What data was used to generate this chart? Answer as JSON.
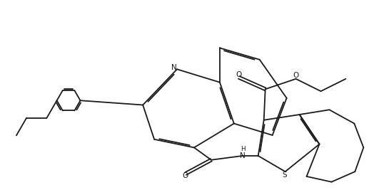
{
  "bg_color": "#ffffff",
  "line_color": "#1a1a1a",
  "line_width": 1.3,
  "figsize": [
    5.17,
    2.67
  ],
  "dpi": 100,
  "xlim": [
    0.0,
    10.0
  ],
  "ylim": [
    0.5,
    5.5
  ],
  "font_size": 7.5
}
